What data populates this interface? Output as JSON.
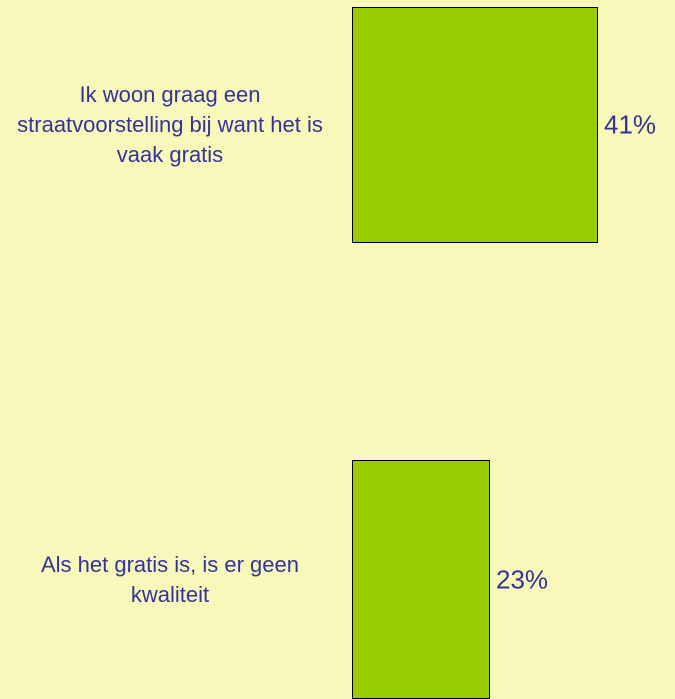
{
  "chart_data": {
    "type": "bar",
    "orientation": "horizontal",
    "categories": [
      "Ik woon graag een straatvoorstelling bij want het is vaak gratis",
      "Als het gratis is, is er geen kwaliteit"
    ],
    "values": [
      41,
      23
    ],
    "value_labels": [
      "41%",
      "23%"
    ],
    "color": "#99cc00"
  }
}
